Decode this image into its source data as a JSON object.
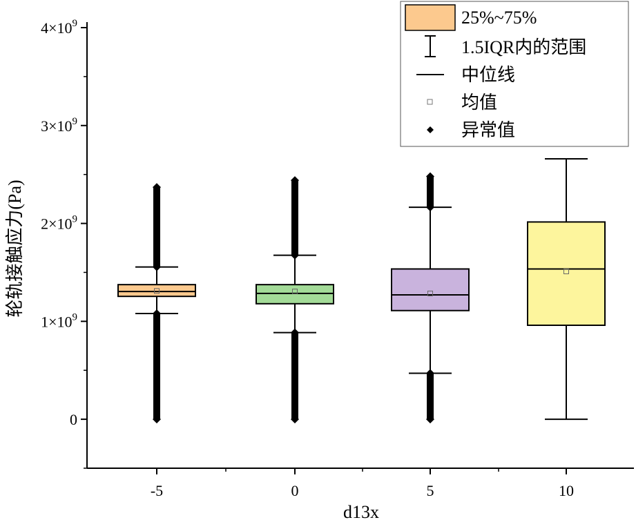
{
  "chart_data": {
    "type": "box",
    "xlabel": "d13x",
    "ylabel": "轮轨接触应力(Pa)",
    "ylim": [
      -0.5,
      4.0
    ],
    "y_ticks": [
      {
        "value": 0,
        "label": "0"
      },
      {
        "value": 1,
        "label": "1×10",
        "exp": "9"
      },
      {
        "value": 2,
        "label": "2×10",
        "exp": "9"
      },
      {
        "value": 3,
        "label": "3×10",
        "exp": "9"
      },
      {
        "value": 4,
        "label": "4×10",
        "exp": "9"
      }
    ],
    "y_unit_multiplier": 1000000000,
    "categories": [
      "-5",
      "0",
      "5",
      "10"
    ],
    "boxes": [
      {
        "category": "-5",
        "color": "#fcc98e",
        "whisker_low": 1.08,
        "q1": 1.255,
        "median": 1.305,
        "q3": 1.375,
        "whisker_high": 1.555,
        "mean": 1.31,
        "outliers": {
          "low": [
            0.0,
            1.08
          ],
          "high": [
            1.555,
            2.37
          ]
        }
      },
      {
        "category": "0",
        "color": "#a3db98",
        "whisker_low": 0.885,
        "q1": 1.18,
        "median": 1.285,
        "q3": 1.375,
        "whisker_high": 1.675,
        "mean": 1.305,
        "outliers": {
          "low": [
            0.0,
            0.885
          ],
          "high": [
            1.675,
            2.44
          ]
        }
      },
      {
        "category": "5",
        "color": "#c9b3dd",
        "whisker_low": 0.47,
        "q1": 1.11,
        "median": 1.27,
        "q3": 1.535,
        "whisker_high": 2.165,
        "mean": 1.285,
        "outliers": {
          "low": [
            0.0,
            0.47
          ],
          "high": [
            2.165,
            2.48
          ]
        }
      },
      {
        "category": "10",
        "color": "#fdf59d",
        "whisker_low": 0.0,
        "q1": 0.96,
        "median": 1.535,
        "q3": 2.015,
        "whisker_high": 2.66,
        "mean": 1.51,
        "outliers": null
      }
    ],
    "legend": {
      "placement": "top-right",
      "items": [
        {
          "label": "25%~75%",
          "symbol": "box",
          "color": "#fcc98e"
        },
        {
          "label": "1.5IQR内的范围",
          "symbol": "whisker"
        },
        {
          "label": "中位线",
          "symbol": "line"
        },
        {
          "label": "均值",
          "symbol": "open-square"
        },
        {
          "label": "异常值",
          "symbol": "diamond"
        }
      ]
    }
  }
}
